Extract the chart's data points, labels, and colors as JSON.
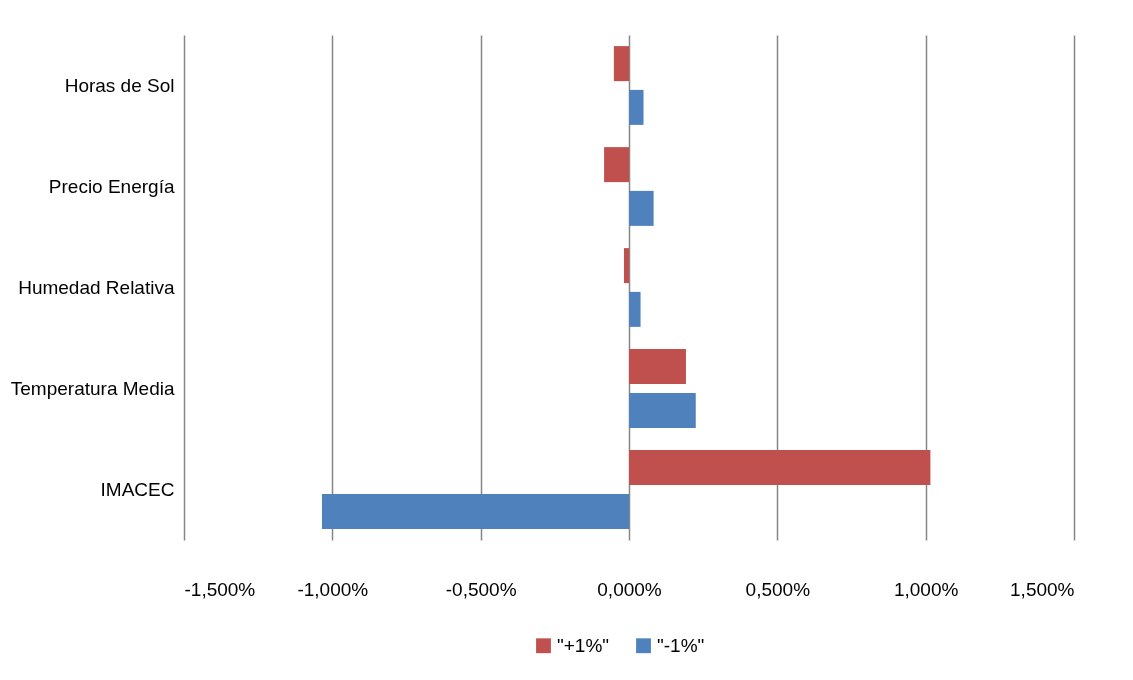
{
  "chart_data": {
    "type": "bar",
    "orientation": "horizontal",
    "categories": [
      "Horas de Sol",
      "Precio Energía",
      "Humedad Relativa",
      "Temperatura Media",
      "IMACEC"
    ],
    "series": [
      {
        "name": "\"+1%\"",
        "color": "#c0504d",
        "values": [
          -0.051,
          -0.084,
          -0.017,
          0.192,
          1.016
        ]
      },
      {
        "name": "\"-1%\"",
        "color": "#4f81bd",
        "values": [
          0.049,
          0.083,
          0.039,
          0.225,
          -1.035
        ]
      }
    ],
    "xlim": [
      -1.5,
      1.5
    ],
    "xticks": [
      {
        "value": -1.5,
        "label": "-1,500%"
      },
      {
        "value": -1,
        "label": "-1,000%"
      },
      {
        "value": -0.5,
        "label": "-0,500%"
      },
      {
        "value": 0,
        "label": "0,000%"
      },
      {
        "value": 0.5,
        "label": "0,500%"
      },
      {
        "value": 1,
        "label": "1,000%"
      },
      {
        "value": 1.5,
        "label": "1,500%"
      }
    ],
    "grid": "x",
    "legend": "bottom"
  }
}
